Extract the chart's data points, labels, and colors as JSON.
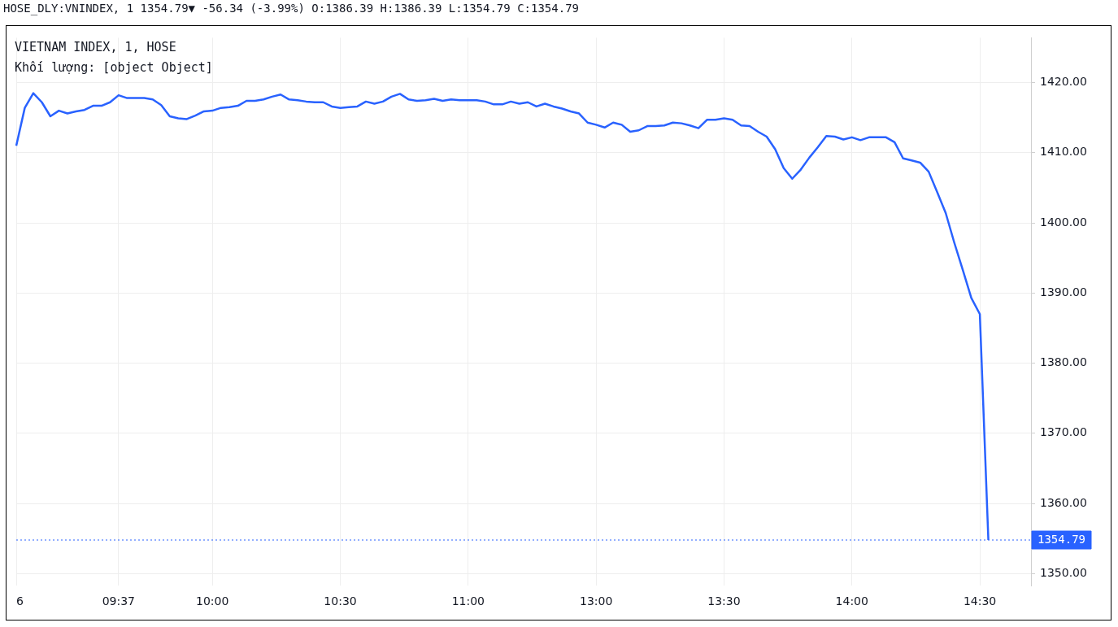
{
  "chart_data": {
    "type": "line",
    "title": "HOSE_DLY:VNINDEX, 1 1354.79▼ -56.34 (-3.99%) O:1386.39 H:1386.39 L:1354.79 C:1354.79",
    "subtitle": "VIETNAM INDEX, 1, HOSE",
    "annotations": [
      "Khối lượng: [object Object]"
    ],
    "categories": [
      "6",
      null,
      null,
      null,
      null,
      null,
      null,
      null,
      null,
      null,
      null,
      null,
      "09:37",
      null,
      null,
      null,
      null,
      null,
      null,
      null,
      null,
      null,
      null,
      "10:00",
      null,
      null,
      null,
      null,
      null,
      null,
      null,
      null,
      null,
      null,
      null,
      null,
      null,
      null,
      "10:30",
      null,
      null,
      null,
      null,
      null,
      null,
      null,
      null,
      null,
      null,
      null,
      null,
      null,
      null,
      "11:00",
      null,
      null,
      null,
      null,
      null,
      null,
      null,
      null,
      null,
      null,
      null,
      null,
      null,
      null,
      "13:00",
      null,
      null,
      null,
      null,
      null,
      null,
      null,
      null,
      null,
      null,
      null,
      null,
      null,
      null,
      "13:30",
      null,
      null,
      null,
      null,
      null,
      null,
      null,
      null,
      null,
      null,
      null,
      null,
      null,
      null,
      "14:00",
      null,
      null,
      null,
      null,
      null,
      null,
      null,
      null,
      null,
      null,
      null,
      null,
      null,
      null,
      "14:30",
      null,
      null,
      null,
      null,
      null,
      null
    ],
    "series": [
      {
        "color": "#2962ff",
        "values": [
          1411.0,
          1416.4,
          1418.5,
          1417.2,
          1415.2,
          1416.0,
          1415.6,
          1415.9,
          1416.1,
          1416.7,
          1416.7,
          1417.2,
          1418.2,
          1417.8,
          1417.8,
          1417.8,
          1417.6,
          1416.8,
          1415.2,
          1414.9,
          1414.8,
          1415.3,
          1415.9,
          1416.0,
          1416.4,
          1416.5,
          1416.7,
          1417.4,
          1417.4,
          1417.6,
          1418.0,
          1418.3,
          1417.6,
          1417.5,
          1417.3,
          1417.2,
          1417.2,
          1416.6,
          1416.4,
          1416.5,
          1416.6,
          1417.3,
          1417.0,
          1417.3,
          1418.0,
          1418.4,
          1417.6,
          1417.4,
          1417.5,
          1417.7,
          1417.4,
          1417.6,
          1417.5,
          1417.5,
          1417.5,
          1417.3,
          1416.9,
          1416.9,
          1417.3,
          1417.0,
          1417.2,
          1416.6,
          1417.0,
          1416.6,
          1416.3,
          1415.9,
          1415.6,
          1414.3,
          1414.0,
          1413.6,
          1414.3,
          1414.0,
          1413.0,
          1413.2,
          1413.8,
          1413.8,
          1413.9,
          1414.3,
          1414.2,
          1413.9,
          1413.5,
          1414.7,
          1414.7,
          1414.9,
          1414.7,
          1413.9,
          1413.8,
          1413.0,
          1412.3,
          1410.5,
          1407.8,
          1406.3,
          1407.6,
          1409.3,
          1410.8,
          1412.4,
          1412.3,
          1411.9,
          1412.2,
          1411.8,
          1412.2,
          1412.2,
          1412.2,
          1411.5,
          1409.2,
          1408.9,
          1408.6,
          1407.3,
          1404.4,
          1401.4,
          1397.2,
          1393.3,
          1389.3,
          1387.0,
          1354.79,
          null,
          null,
          null,
          null,
          null
        ]
      }
    ],
    "ylim": [
      1348.3,
      1426.4
    ],
    "yticks": [
      {
        "value": 1350,
        "label": "1350.00"
      },
      {
        "value": 1360,
        "label": "1360.00"
      },
      {
        "value": 1370,
        "label": "1370.00"
      },
      {
        "value": 1380,
        "label": "1380.00"
      },
      {
        "value": 1390,
        "label": "1390.00"
      },
      {
        "value": 1400,
        "label": "1400.00"
      },
      {
        "value": 1410,
        "label": "1410.00"
      },
      {
        "value": 1420,
        "label": "1420.00"
      }
    ],
    "ref_lines": [
      {
        "axis": "y",
        "value": 1354.79,
        "label": "1354.79",
        "color": "#2962ff",
        "line_style": "dotted"
      }
    ],
    "grid": true,
    "legend": false,
    "marker": "none",
    "line_style": "solid"
  }
}
